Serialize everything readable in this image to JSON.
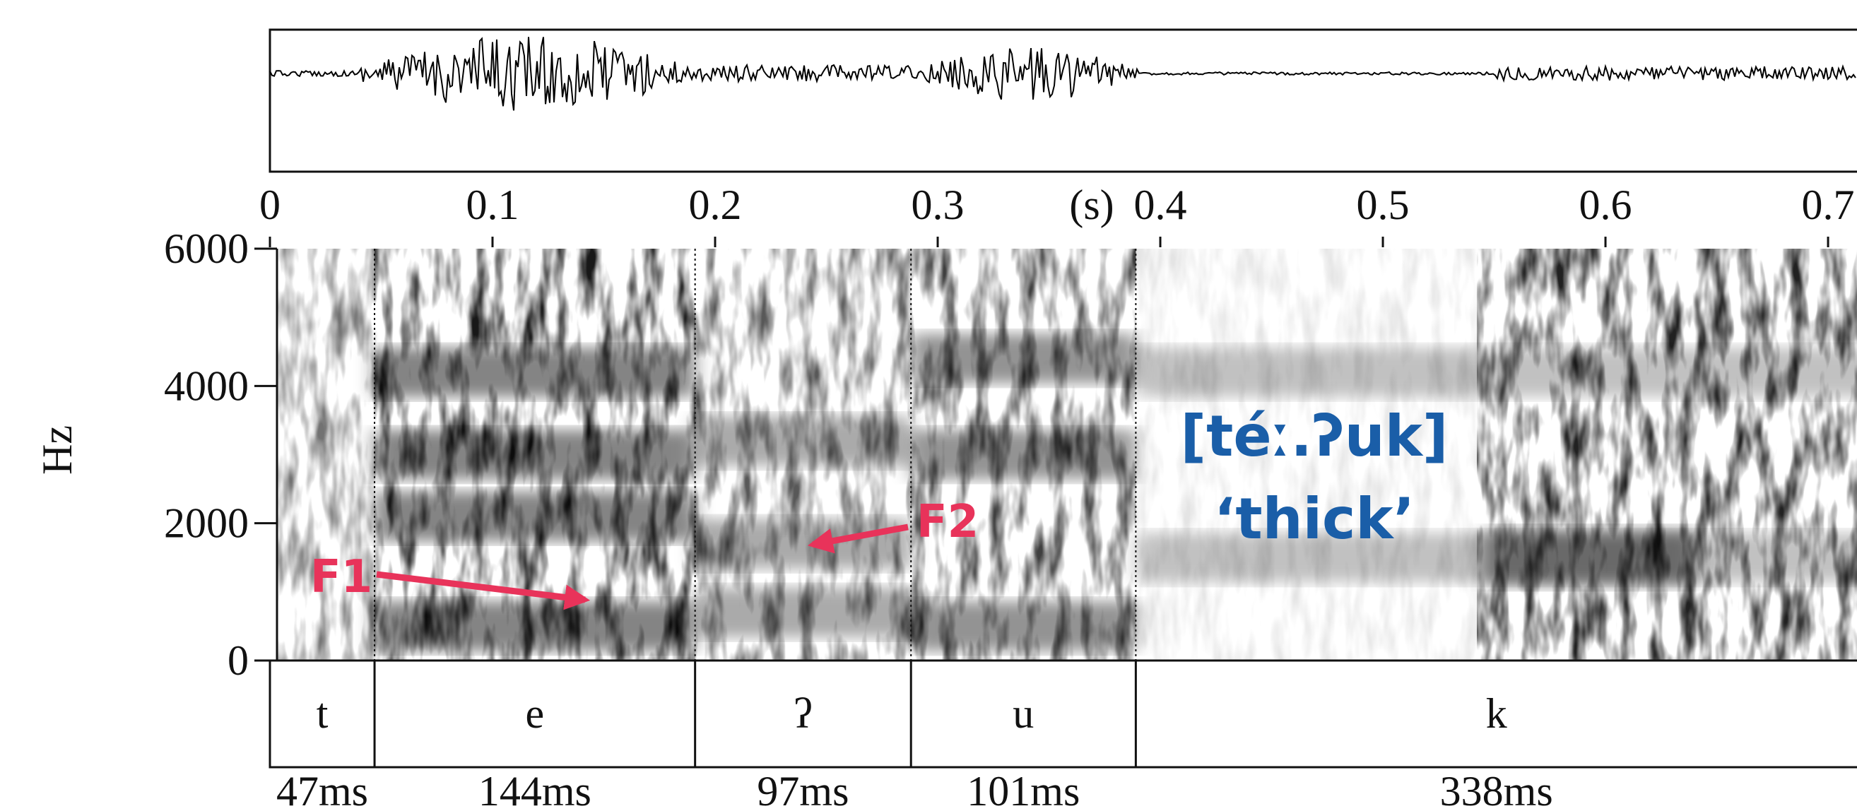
{
  "chart_data": {
    "type": "spectrogram",
    "xlim": [
      0,
      0.713
    ],
    "xticks": [
      0,
      0.1,
      0.2,
      0.3,
      0.4,
      0.5,
      0.6,
      0.7
    ],
    "x_unit_label": "(s)",
    "ylim": [
      0,
      6000
    ],
    "yticks": [
      0,
      2000,
      4000,
      6000
    ],
    "ylabel": "Hz",
    "segments": [
      "t",
      "e",
      "ʔ",
      "u",
      "k"
    ],
    "durations": [
      0.047,
      0.144,
      0.097,
      0.101,
      0.338
    ],
    "duration_labels": [
      "47ms",
      "144ms",
      "97ms",
      "101ms",
      "338ms"
    ],
    "annotations": {
      "f1": "F1",
      "f2": "F2",
      "transcription": "[téː.ʔuk]",
      "gloss": "‘thick’"
    }
  }
}
